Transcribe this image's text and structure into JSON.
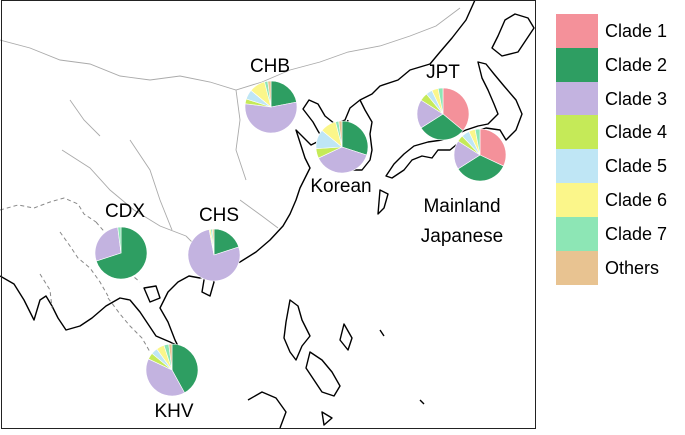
{
  "clades": [
    {
      "name": "Clade 1",
      "color": "#f4919a"
    },
    {
      "name": "Clade 2",
      "color": "#2e9e62"
    },
    {
      "name": "Clade 3",
      "color": "#c3b3e0"
    },
    {
      "name": "Clade 4",
      "color": "#c5ea58"
    },
    {
      "name": "Clade 5",
      "color": "#bfe6f5"
    },
    {
      "name": "Clade 6",
      "color": "#fbf68a"
    },
    {
      "name": "Clade 7",
      "color": "#8de6b5"
    },
    {
      "name": "Others",
      "color": "#e8c391"
    }
  ],
  "populations": [
    {
      "id": "CHB",
      "label_lines": [
        "CHB"
      ],
      "composition": [
        0,
        0.22,
        0.55,
        0.03,
        0.06,
        0.1,
        0.02,
        0.02
      ]
    },
    {
      "id": "JPT",
      "label_lines": [
        "JPT"
      ],
      "composition": [
        0.36,
        0.3,
        0.18,
        0.05,
        0.04,
        0.04,
        0.03,
        0
      ]
    },
    {
      "id": "Korean",
      "label_lines": [
        "Korean"
      ],
      "composition": [
        0,
        0.3,
        0.38,
        0.06,
        0.12,
        0.1,
        0.02,
        0.02
      ]
    },
    {
      "id": "Mainland Japanese",
      "label_lines": [
        "Mainland",
        "Japanese"
      ],
      "composition": [
        0.32,
        0.34,
        0.18,
        0.04,
        0.05,
        0.04,
        0.03,
        0
      ]
    },
    {
      "id": "CDX",
      "label_lines": [
        "CDX"
      ],
      "composition": [
        0,
        0.7,
        0.28,
        0,
        0,
        0,
        0.02,
        0
      ]
    },
    {
      "id": "CHS",
      "label_lines": [
        "CHS"
      ],
      "composition": [
        0,
        0.2,
        0.77,
        0,
        0,
        0.01,
        0.01,
        0.01
      ]
    },
    {
      "id": "KHV",
      "label_lines": [
        "KHV"
      ],
      "composition": [
        0,
        0.42,
        0.4,
        0.04,
        0.04,
        0.05,
        0.03,
        0.02
      ]
    }
  ]
}
